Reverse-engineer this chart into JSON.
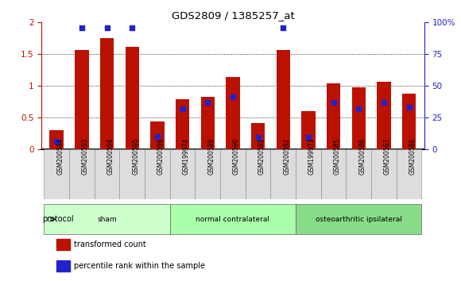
{
  "title": "GDS2809 / 1385257_at",
  "samples": [
    "GSM200584",
    "GSM200593",
    "GSM200594",
    "GSM200595",
    "GSM200596",
    "GSM199974",
    "GSM200589",
    "GSM200590",
    "GSM200591",
    "GSM200592",
    "GSM199973",
    "GSM200585",
    "GSM200586",
    "GSM200587",
    "GSM200588"
  ],
  "red_values": [
    0.3,
    1.56,
    1.75,
    1.61,
    0.44,
    0.79,
    0.83,
    1.14,
    0.41,
    1.57,
    0.6,
    1.04,
    0.97,
    1.06,
    0.88
  ],
  "blue_pct": [
    6,
    96,
    96,
    96,
    10,
    32,
    37,
    41,
    9,
    96,
    9,
    37,
    32,
    37,
    33
  ],
  "groups": [
    {
      "label": "sham",
      "start": 0,
      "end": 4,
      "color": "#ccffcc"
    },
    {
      "label": "normal contralateral",
      "start": 5,
      "end": 9,
      "color": "#aaffaa"
    },
    {
      "label": "osteoarthritic ipsilateral",
      "start": 10,
      "end": 14,
      "color": "#88dd88"
    }
  ],
  "ylim_left": [
    0,
    2.0
  ],
  "ylim_right": [
    0,
    100
  ],
  "yticks_left": [
    0,
    0.5,
    1.0,
    1.5,
    2.0
  ],
  "ytick_labels_left": [
    "0",
    "0.5",
    "1",
    "1.5",
    "2"
  ],
  "yticks_right": [
    0,
    25,
    50,
    75,
    100
  ],
  "ytick_labels_right": [
    "0",
    "25",
    "50",
    "75",
    "100%"
  ],
  "bar_color": "#bb1100",
  "dot_color": "#2222cc",
  "protocol_label": "protocol",
  "legend_items": [
    {
      "label": "transformed count",
      "color": "#bb1100"
    },
    {
      "label": "percentile rank within the sample",
      "color": "#2222cc"
    }
  ]
}
